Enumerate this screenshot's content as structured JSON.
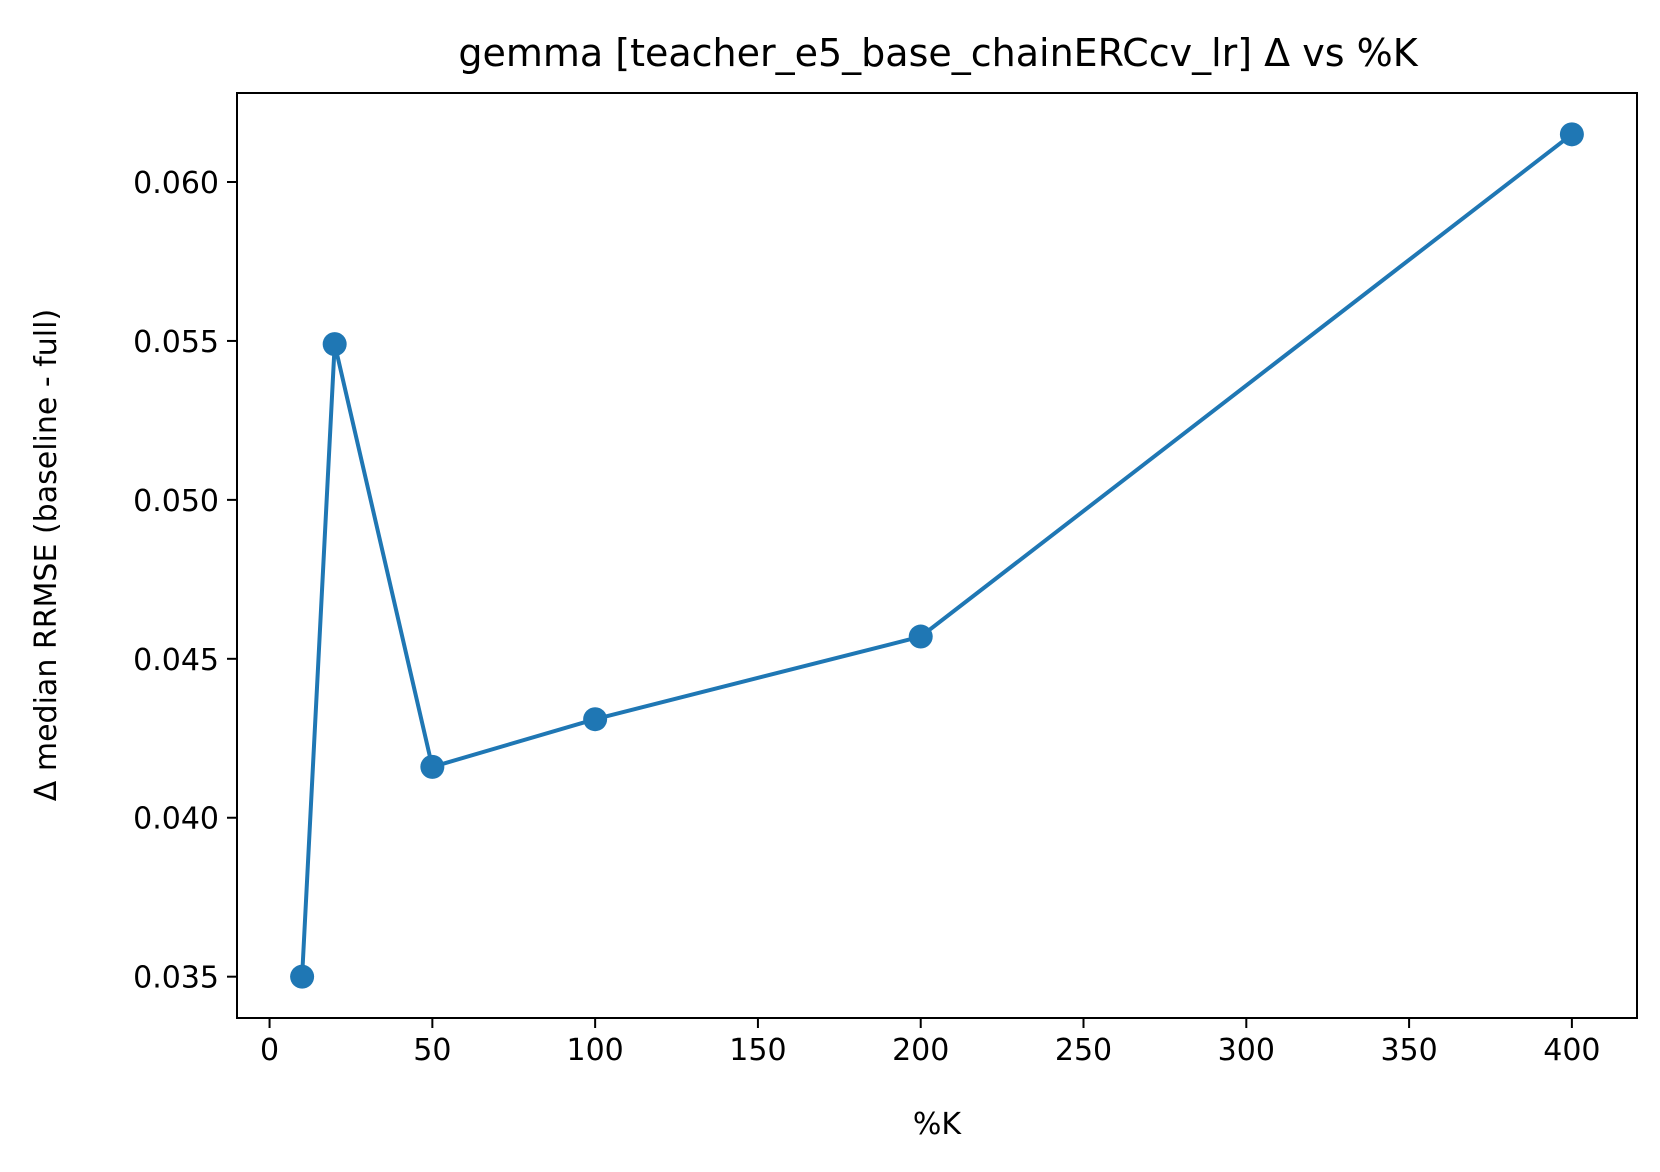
{
  "chart_data": {
    "type": "line",
    "title": "gemma [teacher_e5_base_chainERCcv_lr] Δ vs %K",
    "xlabel": "%K",
    "ylabel": "Δ median RRMSE (baseline - full)",
    "xlim": [
      -10,
      420
    ],
    "ylim": [
      0.0337,
      0.0628
    ],
    "x_ticks": [
      0,
      50,
      100,
      150,
      200,
      250,
      300,
      350,
      400
    ],
    "x_tick_labels": [
      "0",
      "50",
      "100",
      "150",
      "200",
      "250",
      "300",
      "350",
      "400"
    ],
    "y_ticks": [
      0.035,
      0.04,
      0.045,
      0.05,
      0.055,
      0.06
    ],
    "y_tick_labels": [
      "0.035",
      "0.040",
      "0.045",
      "0.050",
      "0.055",
      "0.060"
    ],
    "grid": false,
    "series": [
      {
        "color": "#1f77b4",
        "marker": "circle",
        "points": [
          {
            "x": 10,
            "y": 0.035
          },
          {
            "x": 20,
            "y": 0.0549
          },
          {
            "x": 50,
            "y": 0.0416
          },
          {
            "x": 100,
            "y": 0.0431
          },
          {
            "x": 200,
            "y": 0.0457
          },
          {
            "x": 400,
            "y": 0.0615
          }
        ]
      }
    ]
  }
}
